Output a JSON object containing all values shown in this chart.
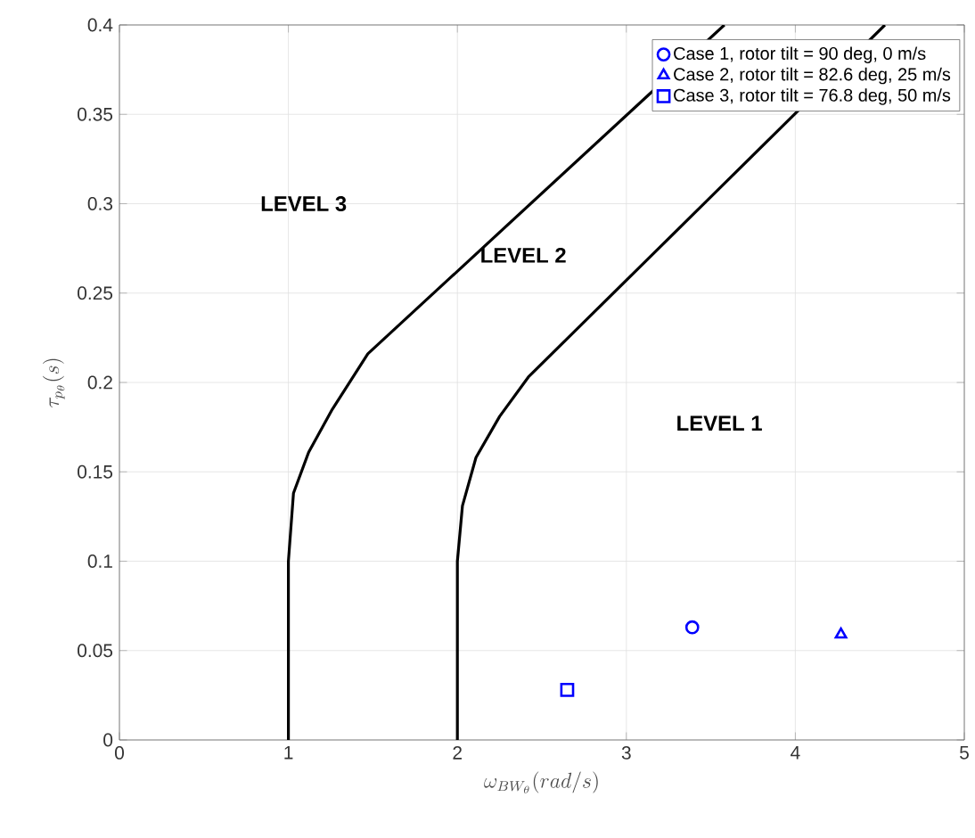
{
  "chart_data": {
    "type": "line",
    "xlabel": "\\omega_{BW_\\theta}(rad/s)",
    "ylabel": "\\tau_{p_\\theta}(s)",
    "xlim": [
      0,
      5
    ],
    "ylim": [
      0,
      0.4
    ],
    "xticks": [
      0,
      1,
      2,
      3,
      4,
      5
    ],
    "yticks": [
      0,
      0.05,
      0.1,
      0.15,
      0.2,
      0.25,
      0.3,
      0.35,
      0.4
    ],
    "grid": true,
    "legend": "top right",
    "series": [
      {
        "color": "#000000",
        "x": [
          1.0,
          1.0,
          1.03,
          1.12,
          1.26,
          1.47,
          3.58
        ],
        "values": [
          0,
          0.1,
          0.138,
          0.161,
          0.185,
          0.216,
          0.4
        ]
      },
      {
        "color": "#000000",
        "x": [
          2.0,
          2.0,
          2.03,
          2.11,
          2.25,
          2.42,
          4.53
        ],
        "values": [
          0,
          0.1,
          0.131,
          0.158,
          0.181,
          0.203,
          0.4
        ]
      },
      {
        "type": "scatter",
        "name": "Case 1, rotor tilt = 90 deg, 0 m/s",
        "color": "#0000ff",
        "marker": "circle",
        "x": [
          3.39
        ],
        "values": [
          0.063
        ]
      },
      {
        "type": "scatter",
        "name": "Case 2, rotor tilt = 82.6 deg, 25 m/s",
        "color": "#0000ff",
        "marker": "triangle",
        "x": [
          4.27
        ],
        "values": [
          0.059
        ]
      },
      {
        "type": "scatter",
        "name": "Case 3, rotor tilt = 76.8 deg, 50 m/s",
        "color": "#0000ff",
        "marker": "square",
        "x": [
          2.65
        ],
        "values": [
          0.028
        ]
      }
    ],
    "annotations": [
      "LEVEL 3",
      "LEVEL 2",
      "LEVEL 1"
    ]
  }
}
